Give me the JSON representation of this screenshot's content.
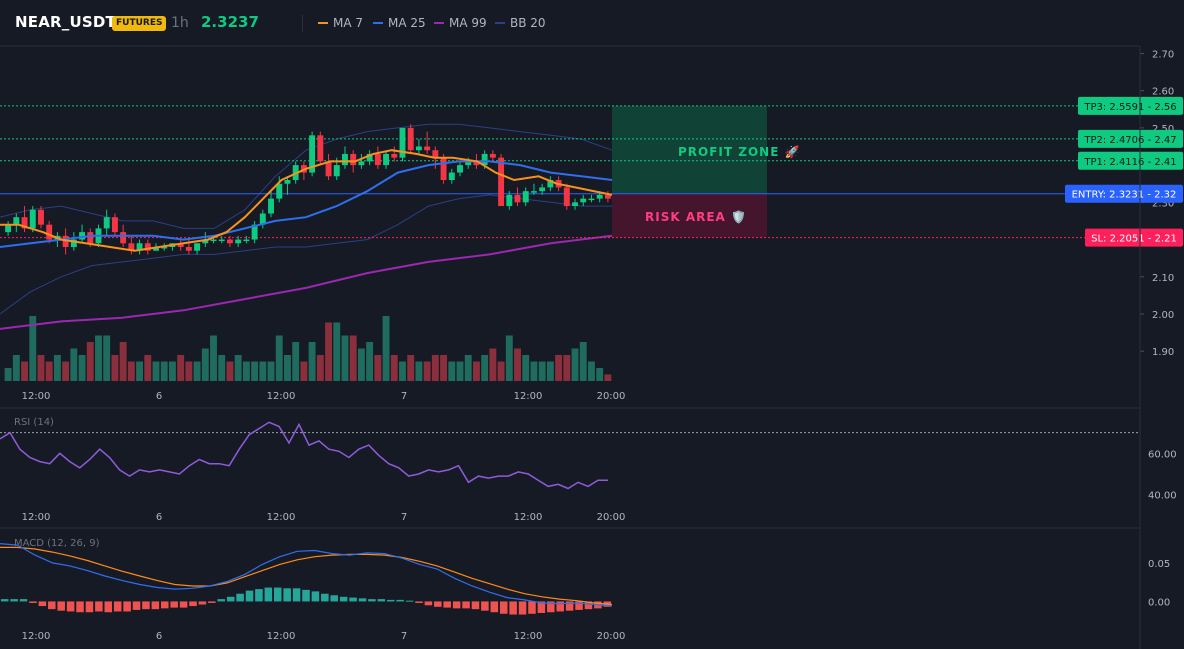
{
  "header": {
    "symbol": "NEAR_USDT",
    "badge": "FUTURES",
    "timeframe": "1h",
    "last_price": "2.3237",
    "legend": [
      {
        "label": "MA 7",
        "color": "#f7931a"
      },
      {
        "label": "MA 25",
        "color": "#2f6fed"
      },
      {
        "label": "MA 99",
        "color": "#9c27b0"
      },
      {
        "label": "BB 20",
        "color": "#2c3f86"
      }
    ]
  },
  "colors": {
    "up": "#26a69a",
    "up_candle": "#0ecb81",
    "down": "#f23645",
    "tp": "#0ecb81",
    "entry": "#2962ff",
    "sl": "#ff1f5a"
  },
  "chart_data": [
    {
      "type": "candlestick",
      "title": "NEAR_USDT 1h",
      "y_ticks": [
        "2.70",
        "2.60",
        "2.50",
        "2.40",
        "2.30",
        "2.20",
        "2.10",
        "2.00",
        "1.90"
      ],
      "x_ticks": [
        "12:00",
        "6",
        "12:00",
        "7",
        "12:00",
        "20:00"
      ],
      "ylim": [
        1.82,
        2.72
      ],
      "candles": [
        [
          2.22,
          2.25,
          2.24,
          2.21
        ],
        [
          2.24,
          2.27,
          2.26,
          2.22
        ],
        [
          2.26,
          2.29,
          2.23,
          2.22
        ],
        [
          2.23,
          2.29,
          2.28,
          2.22
        ],
        [
          2.28,
          2.29,
          2.24,
          2.23
        ],
        [
          2.24,
          2.25,
          2.2,
          2.19
        ],
        [
          2.2,
          2.22,
          2.21,
          2.18
        ],
        [
          2.21,
          2.23,
          2.18,
          2.16
        ],
        [
          2.18,
          2.22,
          2.2,
          2.17
        ],
        [
          2.2,
          2.24,
          2.22,
          2.19
        ],
        [
          2.22,
          2.23,
          2.19,
          2.18
        ],
        [
          2.19,
          2.24,
          2.23,
          2.18
        ],
        [
          2.23,
          2.28,
          2.26,
          2.21
        ],
        [
          2.26,
          2.27,
          2.22,
          2.21
        ],
        [
          2.22,
          2.24,
          2.19,
          2.18
        ],
        [
          2.19,
          2.21,
          2.17,
          2.16
        ],
        [
          2.17,
          2.2,
          2.19,
          2.16
        ],
        [
          2.19,
          2.2,
          2.17,
          2.16
        ],
        [
          2.17,
          2.19,
          2.18,
          2.17
        ],
        [
          2.18,
          2.19,
          2.18,
          2.17
        ],
        [
          2.18,
          2.19,
          2.19,
          2.17
        ],
        [
          2.19,
          2.2,
          2.18,
          2.17
        ],
        [
          2.18,
          2.2,
          2.17,
          2.16
        ],
        [
          2.17,
          2.19,
          2.19,
          2.16
        ],
        [
          2.19,
          2.22,
          2.2,
          2.18
        ],
        [
          2.2,
          2.21,
          2.2,
          2.19
        ],
        [
          2.2,
          2.21,
          2.2,
          2.19
        ],
        [
          2.2,
          2.21,
          2.19,
          2.18
        ],
        [
          2.19,
          2.21,
          2.2,
          2.18
        ],
        [
          2.2,
          2.21,
          2.2,
          2.19
        ],
        [
          2.2,
          2.25,
          2.24,
          2.19
        ],
        [
          2.24,
          2.28,
          2.27,
          2.23
        ],
        [
          2.27,
          2.33,
          2.31,
          2.26
        ],
        [
          2.31,
          2.37,
          2.35,
          2.3
        ],
        [
          2.35,
          2.37,
          2.36,
          2.32
        ],
        [
          2.36,
          2.41,
          2.4,
          2.35
        ],
        [
          2.4,
          2.41,
          2.38,
          2.36
        ],
        [
          2.38,
          2.49,
          2.48,
          2.37
        ],
        [
          2.48,
          2.49,
          2.41,
          2.4
        ],
        [
          2.41,
          2.43,
          2.37,
          2.36
        ],
        [
          2.37,
          2.42,
          2.4,
          2.36
        ],
        [
          2.4,
          2.45,
          2.43,
          2.39
        ],
        [
          2.43,
          2.44,
          2.4,
          2.38
        ],
        [
          2.4,
          2.43,
          2.41,
          2.39
        ],
        [
          2.41,
          2.44,
          2.43,
          2.4
        ],
        [
          2.43,
          2.45,
          2.4,
          2.39
        ],
        [
          2.4,
          2.44,
          2.43,
          2.39
        ],
        [
          2.43,
          2.45,
          2.42,
          2.41
        ],
        [
          2.42,
          2.5,
          2.5,
          2.41
        ],
        [
          2.5,
          2.51,
          2.44,
          2.43
        ],
        [
          2.44,
          2.47,
          2.45,
          2.43
        ],
        [
          2.45,
          2.49,
          2.44,
          2.43
        ],
        [
          2.44,
          2.45,
          2.42,
          2.39
        ],
        [
          2.42,
          2.43,
          2.36,
          2.35
        ],
        [
          2.36,
          2.39,
          2.38,
          2.35
        ],
        [
          2.38,
          2.41,
          2.4,
          2.37
        ],
        [
          2.4,
          2.42,
          2.41,
          2.39
        ],
        [
          2.41,
          2.43,
          2.4,
          2.39
        ],
        [
          2.4,
          2.44,
          2.43,
          2.39
        ],
        [
          2.43,
          2.44,
          2.42,
          2.41
        ],
        [
          2.42,
          2.43,
          2.29,
          2.29
        ],
        [
          2.29,
          2.33,
          2.32,
          2.28
        ],
        [
          2.32,
          2.34,
          2.3,
          2.29
        ],
        [
          2.3,
          2.34,
          2.33,
          2.29
        ],
        [
          2.33,
          2.35,
          2.33,
          2.32
        ],
        [
          2.33,
          2.35,
          2.34,
          2.32
        ],
        [
          2.34,
          2.37,
          2.36,
          2.33
        ],
        [
          2.36,
          2.37,
          2.34,
          2.33
        ],
        [
          2.34,
          2.35,
          2.29,
          2.28
        ],
        [
          2.29,
          2.31,
          2.3,
          2.28
        ],
        [
          2.3,
          2.32,
          2.31,
          2.29
        ],
        [
          2.31,
          2.32,
          2.31,
          2.3
        ],
        [
          2.31,
          2.33,
          2.32,
          2.3
        ],
        [
          2.32,
          2.33,
          2.31,
          2.3
        ]
      ],
      "ma7": [
        [
          0,
          2.24
        ],
        [
          0.03,
          2.24
        ],
        [
          0.07,
          2.22
        ],
        [
          0.1,
          2.2
        ],
        [
          0.14,
          2.19
        ],
        [
          0.18,
          2.18
        ],
        [
          0.22,
          2.17
        ],
        [
          0.26,
          2.18
        ],
        [
          0.3,
          2.19
        ],
        [
          0.34,
          2.2
        ],
        [
          0.37,
          2.22
        ],
        [
          0.4,
          2.26
        ],
        [
          0.43,
          2.31
        ],
        [
          0.46,
          2.36
        ],
        [
          0.5,
          2.39
        ],
        [
          0.54,
          2.41
        ],
        [
          0.58,
          2.41
        ],
        [
          0.61,
          2.43
        ],
        [
          0.64,
          2.44
        ],
        [
          0.68,
          2.43
        ],
        [
          0.71,
          2.42
        ],
        [
          0.74,
          2.42
        ],
        [
          0.78,
          2.41
        ],
        [
          0.81,
          2.38
        ],
        [
          0.84,
          2.36
        ],
        [
          0.88,
          2.37
        ],
        [
          0.91,
          2.35
        ],
        [
          0.94,
          2.34
        ],
        [
          1.0,
          2.32
        ]
      ],
      "ma25": [
        [
          0,
          2.18
        ],
        [
          0.05,
          2.19
        ],
        [
          0.1,
          2.2
        ],
        [
          0.15,
          2.21
        ],
        [
          0.2,
          2.21
        ],
        [
          0.25,
          2.21
        ],
        [
          0.3,
          2.2
        ],
        [
          0.35,
          2.21
        ],
        [
          0.4,
          2.23
        ],
        [
          0.45,
          2.25
        ],
        [
          0.5,
          2.26
        ],
        [
          0.55,
          2.29
        ],
        [
          0.6,
          2.33
        ],
        [
          0.65,
          2.38
        ],
        [
          0.7,
          2.4
        ],
        [
          0.75,
          2.41
        ],
        [
          0.8,
          2.41
        ],
        [
          0.85,
          2.4
        ],
        [
          0.9,
          2.38
        ],
        [
          0.95,
          2.37
        ],
        [
          1.0,
          2.36
        ]
      ],
      "ma99": [
        [
          0,
          1.96
        ],
        [
          0.1,
          1.98
        ],
        [
          0.2,
          1.99
        ],
        [
          0.3,
          2.01
        ],
        [
          0.4,
          2.04
        ],
        [
          0.5,
          2.07
        ],
        [
          0.6,
          2.11
        ],
        [
          0.7,
          2.14
        ],
        [
          0.8,
          2.16
        ],
        [
          0.9,
          2.19
        ],
        [
          1.0,
          2.21
        ]
      ],
      "bb_upper": [
        [
          0,
          2.26
        ],
        [
          0.05,
          2.28
        ],
        [
          0.1,
          2.29
        ],
        [
          0.15,
          2.27
        ],
        [
          0.2,
          2.25
        ],
        [
          0.25,
          2.25
        ],
        [
          0.3,
          2.23
        ],
        [
          0.35,
          2.23
        ],
        [
          0.4,
          2.28
        ],
        [
          0.45,
          2.37
        ],
        [
          0.5,
          2.44
        ],
        [
          0.55,
          2.47
        ],
        [
          0.6,
          2.49
        ],
        [
          0.65,
          2.5
        ],
        [
          0.7,
          2.51
        ],
        [
          0.75,
          2.51
        ],
        [
          0.8,
          2.5
        ],
        [
          0.85,
          2.49
        ],
        [
          0.9,
          2.48
        ],
        [
          0.95,
          2.47
        ],
        [
          1.0,
          2.44
        ]
      ],
      "bb_lower": [
        [
          0,
          2.0
        ],
        [
          0.05,
          2.06
        ],
        [
          0.1,
          2.1
        ],
        [
          0.15,
          2.13
        ],
        [
          0.2,
          2.14
        ],
        [
          0.25,
          2.15
        ],
        [
          0.3,
          2.16
        ],
        [
          0.35,
          2.16
        ],
        [
          0.4,
          2.17
        ],
        [
          0.45,
          2.18
        ],
        [
          0.5,
          2.18
        ],
        [
          0.55,
          2.19
        ],
        [
          0.6,
          2.2
        ],
        [
          0.65,
          2.24
        ],
        [
          0.7,
          2.29
        ],
        [
          0.75,
          2.31
        ],
        [
          0.8,
          2.32
        ],
        [
          0.85,
          2.31
        ],
        [
          0.9,
          2.3
        ],
        [
          0.95,
          2.29
        ],
        [
          1.0,
          2.29
        ]
      ],
      "bb_mid": [
        [
          0,
          2.15
        ],
        [
          0.05,
          2.17
        ],
        [
          0.1,
          2.19
        ],
        [
          0.15,
          2.2
        ],
        [
          0.2,
          2.2
        ],
        [
          0.25,
          2.2
        ],
        [
          0.3,
          2.2
        ],
        [
          0.35,
          2.2
        ],
        [
          0.4,
          2.22
        ],
        [
          0.45,
          2.26
        ],
        [
          0.5,
          2.3
        ],
        [
          0.55,
          2.33
        ],
        [
          0.6,
          2.35
        ],
        [
          0.65,
          2.37
        ],
        [
          0.7,
          2.4
        ],
        [
          0.75,
          2.41
        ],
        [
          0.8,
          2.41
        ],
        [
          0.85,
          2.4
        ],
        [
          0.9,
          2.38
        ],
        [
          0.95,
          2.37
        ],
        [
          1.0,
          2.36
        ]
      ],
      "volume": [
        2,
        4,
        3,
        10,
        4,
        3,
        4,
        3,
        5,
        4,
        6,
        7,
        7,
        4,
        6,
        3,
        3,
        4,
        3,
        3,
        3,
        4,
        3,
        3,
        5,
        7,
        4,
        3,
        4,
        3,
        3,
        3,
        3,
        7,
        4,
        6,
        3,
        6,
        4,
        9,
        9,
        7,
        7,
        5,
        6,
        4,
        10,
        4,
        3,
        4,
        3,
        3,
        4,
        4,
        3,
        3,
        4,
        3,
        4,
        5,
        3,
        7,
        5,
        4,
        3,
        3,
        3,
        4,
        4,
        5,
        6,
        3,
        2,
        1
      ],
      "levels": [
        {
          "label": "TP3: 2.5591 - 2.56",
          "value": 2.5591,
          "kind": "tp"
        },
        {
          "label": "TP2: 2.4706 - 2.47",
          "value": 2.4706,
          "kind": "tp"
        },
        {
          "label": "TP1: 2.4116 - 2.41",
          "value": 2.4116,
          "kind": "tp"
        },
        {
          "label": "ENTRY: 2.3231 - 2.32",
          "value": 2.3231,
          "kind": "entry"
        },
        {
          "label": "SL: 2.2051 - 2.21",
          "value": 2.2051,
          "kind": "sl"
        }
      ],
      "zones": [
        {
          "label": "PROFIT ZONE 🚀",
          "from": 2.3231,
          "to": 2.5591
        },
        {
          "label": "RISK AREA 🛡️",
          "from": 2.2051,
          "to": 2.3231
        }
      ]
    },
    {
      "type": "line",
      "title": "RSI (14)",
      "y_ticks": [
        "60.00",
        "40.00"
      ],
      "ylim": [
        35,
        80
      ],
      "overbought": 70,
      "values": [
        67,
        70,
        62,
        58,
        56,
        55,
        60,
        56,
        53,
        57,
        62,
        58,
        52,
        49,
        52,
        51,
        52,
        51,
        50,
        54,
        57,
        55,
        55,
        54,
        62,
        69,
        72,
        75,
        73,
        65,
        74,
        64,
        66,
        62,
        61,
        58,
        62,
        64,
        59,
        55,
        53,
        49,
        50,
        52,
        51,
        52,
        54,
        46,
        49,
        48,
        49,
        49,
        51,
        50,
        47,
        44,
        45,
        43,
        46,
        44,
        47,
        47
      ]
    },
    {
      "type": "bar",
      "title": "MACD (12, 26, 9)",
      "y_ticks": [
        "0.05",
        "0.00"
      ],
      "ylim": [
        -0.05,
        0.09
      ],
      "histogram": [
        0.003,
        0.003,
        0.003,
        -0.002,
        -0.006,
        -0.01,
        -0.012,
        -0.013,
        -0.014,
        -0.014,
        -0.013,
        -0.014,
        -0.013,
        -0.013,
        -0.011,
        -0.01,
        -0.01,
        -0.009,
        -0.008,
        -0.008,
        -0.006,
        -0.004,
        -0.002,
        0.003,
        0.006,
        0.01,
        0.014,
        0.016,
        0.018,
        0.018,
        0.017,
        0.017,
        0.015,
        0.013,
        0.01,
        0.008,
        0.006,
        0.005,
        0.004,
        0.003,
        0.003,
        0.002,
        0.002,
        0.001,
        -0.002,
        -0.005,
        -0.007,
        -0.008,
        -0.009,
        -0.009,
        -0.01,
        -0.012,
        -0.014,
        -0.016,
        -0.017,
        -0.017,
        -0.016,
        -0.015,
        -0.014,
        -0.013,
        -0.012,
        -0.011,
        -0.01,
        -0.009,
        -0.007
      ],
      "macd": [
        0.075,
        0.073,
        0.06,
        0.05,
        0.046,
        0.04,
        0.033,
        0.027,
        0.022,
        0.018,
        0.016,
        0.017,
        0.02,
        0.026,
        0.035,
        0.048,
        0.058,
        0.065,
        0.066,
        0.062,
        0.06,
        0.063,
        0.062,
        0.056,
        0.048,
        0.042,
        0.03,
        0.02,
        0.012,
        0.005,
        0.002,
        -0.002,
        -0.003,
        -0.002,
        -0.004,
        -0.006
      ],
      "signal": [
        0.07,
        0.07,
        0.068,
        0.064,
        0.059,
        0.053,
        0.046,
        0.039,
        0.033,
        0.027,
        0.022,
        0.02,
        0.02,
        0.024,
        0.032,
        0.04,
        0.048,
        0.054,
        0.058,
        0.06,
        0.061,
        0.061,
        0.06,
        0.057,
        0.052,
        0.046,
        0.038,
        0.03,
        0.023,
        0.016,
        0.01,
        0.006,
        0.003,
        0.001,
        -0.002,
        -0.004
      ]
    }
  ]
}
